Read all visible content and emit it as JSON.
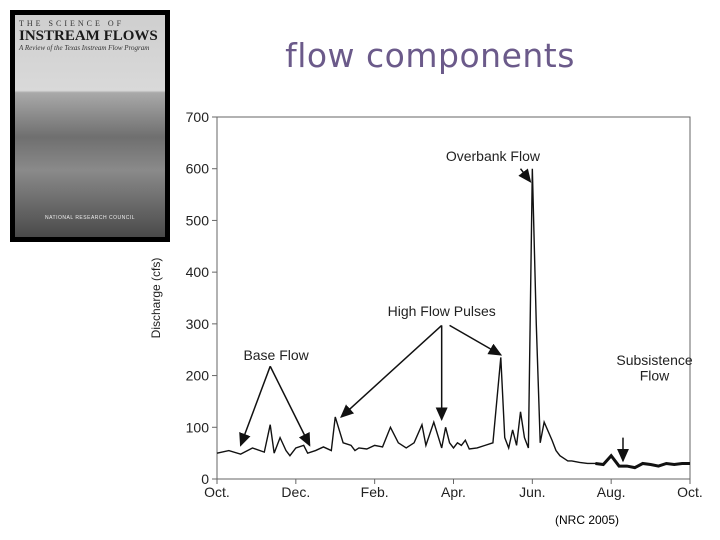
{
  "slide": {
    "title": "flow components",
    "citation": "(NRC 2005)"
  },
  "book_cover": {
    "kicker": "THE SCIENCE OF",
    "title": "INSTREAM FLOWS",
    "subtitle": "A Review of the Texas Instream Flow Program",
    "publisher": "NATIONAL RESEARCH COUNCIL"
  },
  "chart_data": {
    "type": "line",
    "title": "",
    "xlabel": "",
    "ylabel": "Discharge (cfs)",
    "ylim": [
      0,
      700
    ],
    "yticks": [
      0,
      100,
      200,
      300,
      400,
      500,
      600,
      700
    ],
    "xticks": [
      {
        "label": "Oct.",
        "month": 0
      },
      {
        "label": "Dec.",
        "month": 2
      },
      {
        "label": "Feb.",
        "month": 4
      },
      {
        "label": "Apr.",
        "month": 6
      },
      {
        "label": "Jun.",
        "month": 8
      },
      {
        "label": "Aug.",
        "month": 10
      },
      {
        "label": "Oct.",
        "month": 12
      }
    ],
    "xlim": [
      0,
      12
    ],
    "grid": false,
    "series": [
      {
        "x": [
          0,
          0.3,
          0.6,
          0.9,
          1.2,
          1.35,
          1.45,
          1.6,
          1.75,
          1.85,
          2.0,
          2.2,
          2.3,
          2.5,
          2.7,
          2.9,
          3.0,
          3.2,
          3.4,
          3.5,
          3.6,
          3.8,
          4.0,
          4.2,
          4.4,
          4.6,
          4.8,
          5.0,
          5.2,
          5.3,
          5.5,
          5.7,
          5.8,
          5.9,
          6.0,
          6.1,
          6.2,
          6.3,
          6.4,
          6.6,
          6.8,
          7.0,
          7.2,
          7.3,
          7.4,
          7.5,
          7.6,
          7.7,
          7.8,
          7.9,
          8.0,
          8.1,
          8.2,
          8.3,
          8.5,
          8.6,
          8.7,
          8.8,
          8.9,
          9.0,
          9.2,
          9.4,
          9.6,
          9.8,
          10.0,
          10.2,
          10.4,
          10.6,
          10.8,
          11.0,
          11.2,
          11.4,
          11.6,
          11.8,
          12.0
        ],
        "y": [
          50,
          55,
          48,
          60,
          52,
          105,
          50,
          80,
          55,
          45,
          60,
          65,
          50,
          55,
          62,
          55,
          120,
          70,
          65,
          55,
          60,
          58,
          65,
          62,
          100,
          70,
          60,
          70,
          105,
          65,
          110,
          60,
          100,
          70,
          60,
          70,
          65,
          75,
          58,
          60,
          65,
          70,
          235,
          80,
          60,
          95,
          65,
          130,
          80,
          60,
          600,
          300,
          70,
          110,
          75,
          55,
          45,
          40,
          35,
          35,
          32,
          30,
          30,
          28,
          45,
          25,
          25,
          22,
          30,
          28,
          25,
          30,
          28,
          30,
          30
        ]
      }
    ],
    "annotations": [
      {
        "text": "Overbank Flow"
      },
      {
        "text": "High Flow Pulses"
      },
      {
        "text": "Base Flow"
      },
      {
        "text": "Subsistence",
        "text2": "Flow"
      }
    ]
  }
}
